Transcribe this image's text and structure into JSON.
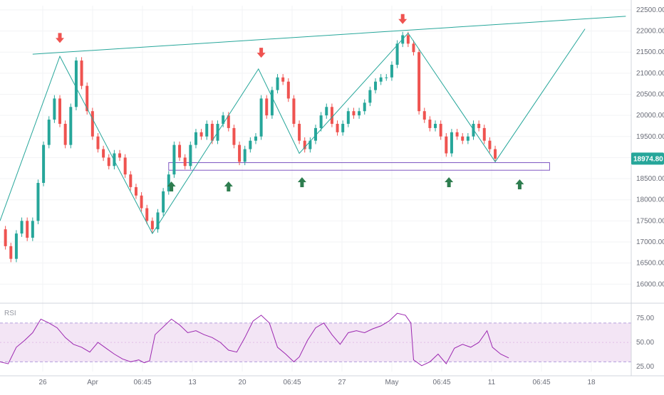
{
  "chart_data": {
    "type": "candlestick",
    "colors": {
      "up": "#26a69a",
      "down": "#ef5350",
      "zigzag": "#26a69a",
      "resistance_line": "#26a69a",
      "support_box": "#7e57c2",
      "sell_arrow": "#ef5350",
      "buy_arrow": "#2e7d4f",
      "rsi_line": "#9c27b0",
      "rsi_band_fill": "#f3e5f5",
      "price_badge": "#26a69a"
    },
    "price_axis": {
      "min": 15650,
      "max": 22600,
      "ticks": [
        "22500.00",
        "22000.00",
        "21500.00",
        "21000.00",
        "20500.00",
        "20000.00",
        "19500.00",
        "19000.00",
        "18500.00",
        "18000.00",
        "17500.00",
        "17000.00",
        "16500.00",
        "16000.00"
      ]
    },
    "last_price": "18974.80",
    "time_axis": {
      "labels": [
        "26",
        "Apr",
        "06:45",
        "13",
        "20",
        "06:45",
        "27",
        "May",
        "06:45",
        "11",
        "06:45",
        "18"
      ]
    },
    "price_series": [
      {
        "t": 0,
        "p": 17300
      },
      {
        "t": 2,
        "p": 16900
      },
      {
        "t": 4,
        "p": 16600
      },
      {
        "t": 6,
        "p": 17200
      },
      {
        "t": 8,
        "p": 17500
      },
      {
        "t": 10,
        "p": 17100
      },
      {
        "t": 12,
        "p": 17500
      },
      {
        "t": 14,
        "p": 18400
      },
      {
        "t": 16,
        "p": 19300
      },
      {
        "t": 18,
        "p": 19900
      },
      {
        "t": 20,
        "p": 20400
      },
      {
        "t": 22,
        "p": 19800
      },
      {
        "t": 24,
        "p": 19300
      },
      {
        "t": 26,
        "p": 20200
      },
      {
        "t": 28,
        "p": 21300
      },
      {
        "t": 30,
        "p": 20700
      },
      {
        "t": 32,
        "p": 20100
      },
      {
        "t": 34,
        "p": 19500
      },
      {
        "t": 36,
        "p": 19200
      },
      {
        "t": 38,
        "p": 19000
      },
      {
        "t": 40,
        "p": 18800
      },
      {
        "t": 42,
        "p": 19100
      },
      {
        "t": 44,
        "p": 19000
      },
      {
        "t": 46,
        "p": 18600
      },
      {
        "t": 48,
        "p": 18300
      },
      {
        "t": 50,
        "p": 18100
      },
      {
        "t": 52,
        "p": 17800
      },
      {
        "t": 54,
        "p": 17500
      },
      {
        "t": 56,
        "p": 17300
      },
      {
        "t": 58,
        "p": 17700
      },
      {
        "t": 60,
        "p": 18200
      },
      {
        "t": 62,
        "p": 18600
      },
      {
        "t": 64,
        "p": 19300
      },
      {
        "t": 66,
        "p": 19000
      },
      {
        "t": 68,
        "p": 18800
      },
      {
        "t": 70,
        "p": 19300
      },
      {
        "t": 72,
        "p": 19600
      },
      {
        "t": 74,
        "p": 19500
      },
      {
        "t": 76,
        "p": 19800
      },
      {
        "t": 78,
        "p": 19400
      },
      {
        "t": 80,
        "p": 19800
      },
      {
        "t": 82,
        "p": 20000
      },
      {
        "t": 84,
        "p": 19700
      },
      {
        "t": 86,
        "p": 19300
      },
      {
        "t": 88,
        "p": 18900
      },
      {
        "t": 90,
        "p": 19200
      },
      {
        "t": 92,
        "p": 19400
      },
      {
        "t": 94,
        "p": 19500
      },
      {
        "t": 96,
        "p": 20400
      },
      {
        "t": 98,
        "p": 20000
      },
      {
        "t": 100,
        "p": 20600
      },
      {
        "t": 102,
        "p": 20900
      },
      {
        "t": 104,
        "p": 20800
      },
      {
        "t": 106,
        "p": 20400
      },
      {
        "t": 108,
        "p": 19800
      },
      {
        "t": 110,
        "p": 19400
      },
      {
        "t": 112,
        "p": 19200
      },
      {
        "t": 114,
        "p": 19400
      },
      {
        "t": 116,
        "p": 19700
      },
      {
        "t": 118,
        "p": 20000
      },
      {
        "t": 120,
        "p": 20200
      },
      {
        "t": 122,
        "p": 19800
      },
      {
        "t": 124,
        "p": 19600
      },
      {
        "t": 126,
        "p": 19800
      },
      {
        "t": 128,
        "p": 20100
      },
      {
        "t": 130,
        "p": 20000
      },
      {
        "t": 132,
        "p": 20100
      },
      {
        "t": 134,
        "p": 20300
      },
      {
        "t": 136,
        "p": 20600
      },
      {
        "t": 138,
        "p": 20800
      },
      {
        "t": 140,
        "p": 20900
      },
      {
        "t": 142,
        "p": 20900
      },
      {
        "t": 144,
        "p": 21200
      },
      {
        "t": 146,
        "p": 21700
      },
      {
        "t": 148,
        "p": 21900
      },
      {
        "t": 150,
        "p": 21700
      },
      {
        "t": 152,
        "p": 21500
      },
      {
        "t": 154,
        "p": 20100
      },
      {
        "t": 156,
        "p": 19900
      },
      {
        "t": 158,
        "p": 19700
      },
      {
        "t": 160,
        "p": 19800
      },
      {
        "t": 162,
        "p": 19500
      },
      {
        "t": 164,
        "p": 19100
      },
      {
        "t": 166,
        "p": 19600
      },
      {
        "t": 168,
        "p": 19500
      },
      {
        "t": 170,
        "p": 19400
      },
      {
        "t": 172,
        "p": 19500
      },
      {
        "t": 174,
        "p": 19800
      },
      {
        "t": 176,
        "p": 19700
      },
      {
        "t": 178,
        "p": 19400
      },
      {
        "t": 180,
        "p": 19200
      },
      {
        "t": 182,
        "p": 18975
      }
    ],
    "zigzag": [
      {
        "t": 0,
        "p": 17500
      },
      {
        "t": 22,
        "p": 21400
      },
      {
        "t": 56,
        "p": 17200
      },
      {
        "t": 95,
        "p": 21100
      },
      {
        "t": 110,
        "p": 19100
      },
      {
        "t": 150,
        "p": 21950
      },
      {
        "t": 182,
        "p": 18900
      },
      {
        "t": 215,
        "p": 22050
      }
    ],
    "resistance_line": [
      {
        "t": 12,
        "p": 21450
      },
      {
        "t": 230,
        "p": 22350
      }
    ],
    "support_zone": {
      "t_start": 62,
      "t_end": 202,
      "p_low": 18700,
      "p_high": 18880
    },
    "sell_arrows": [
      {
        "t": 22,
        "p": 21800
      },
      {
        "t": 96,
        "p": 21450
      },
      {
        "t": 148,
        "p": 22250
      }
    ],
    "buy_arrows": [
      {
        "t": 63,
        "p": 18350
      },
      {
        "t": 84,
        "p": 18350
      },
      {
        "t": 111,
        "p": 18450
      },
      {
        "t": 165,
        "p": 18450
      },
      {
        "t": 191,
        "p": 18400
      }
    ],
    "time_range": [
      0,
      232
    ],
    "rsi": {
      "label": "RSI",
      "min": 20,
      "max": 86,
      "band": [
        30,
        70
      ],
      "ticks": [
        "75.00",
        "50.00",
        "25.00"
      ],
      "series": [
        {
          "t": 0,
          "v": 30
        },
        {
          "t": 3,
          "v": 28
        },
        {
          "t": 6,
          "v": 45
        },
        {
          "t": 9,
          "v": 52
        },
        {
          "t": 12,
          "v": 60
        },
        {
          "t": 15,
          "v": 74
        },
        {
          "t": 18,
          "v": 70
        },
        {
          "t": 21,
          "v": 65
        },
        {
          "t": 24,
          "v": 55
        },
        {
          "t": 27,
          "v": 48
        },
        {
          "t": 30,
          "v": 45
        },
        {
          "t": 33,
          "v": 40
        },
        {
          "t": 36,
          "v": 50
        },
        {
          "t": 39,
          "v": 44
        },
        {
          "t": 42,
          "v": 38
        },
        {
          "t": 45,
          "v": 33
        },
        {
          "t": 48,
          "v": 30
        },
        {
          "t": 51,
          "v": 32
        },
        {
          "t": 53,
          "v": 29
        },
        {
          "t": 55,
          "v": 31
        },
        {
          "t": 57,
          "v": 58
        },
        {
          "t": 60,
          "v": 66
        },
        {
          "t": 63,
          "v": 74
        },
        {
          "t": 66,
          "v": 68
        },
        {
          "t": 69,
          "v": 60
        },
        {
          "t": 72,
          "v": 62
        },
        {
          "t": 75,
          "v": 58
        },
        {
          "t": 78,
          "v": 55
        },
        {
          "t": 81,
          "v": 50
        },
        {
          "t": 84,
          "v": 42
        },
        {
          "t": 87,
          "v": 40
        },
        {
          "t": 90,
          "v": 55
        },
        {
          "t": 93,
          "v": 72
        },
        {
          "t": 96,
          "v": 78
        },
        {
          "t": 99,
          "v": 70
        },
        {
          "t": 102,
          "v": 45
        },
        {
          "t": 105,
          "v": 38
        },
        {
          "t": 108,
          "v": 30
        },
        {
          "t": 110,
          "v": 35
        },
        {
          "t": 113,
          "v": 52
        },
        {
          "t": 116,
          "v": 65
        },
        {
          "t": 119,
          "v": 70
        },
        {
          "t": 122,
          "v": 58
        },
        {
          "t": 125,
          "v": 48
        },
        {
          "t": 128,
          "v": 60
        },
        {
          "t": 131,
          "v": 62
        },
        {
          "t": 134,
          "v": 60
        },
        {
          "t": 137,
          "v": 64
        },
        {
          "t": 140,
          "v": 67
        },
        {
          "t": 143,
          "v": 72
        },
        {
          "t": 146,
          "v": 80
        },
        {
          "t": 149,
          "v": 78
        },
        {
          "t": 151,
          "v": 70
        },
        {
          "t": 152,
          "v": 32
        },
        {
          "t": 155,
          "v": 26
        },
        {
          "t": 158,
          "v": 30
        },
        {
          "t": 161,
          "v": 38
        },
        {
          "t": 164,
          "v": 28
        },
        {
          "t": 167,
          "v": 44
        },
        {
          "t": 170,
          "v": 48
        },
        {
          "t": 173,
          "v": 45
        },
        {
          "t": 176,
          "v": 50
        },
        {
          "t": 179,
          "v": 62
        },
        {
          "t": 181,
          "v": 45
        },
        {
          "t": 184,
          "v": 38
        },
        {
          "t": 187,
          "v": 34
        }
      ]
    }
  }
}
